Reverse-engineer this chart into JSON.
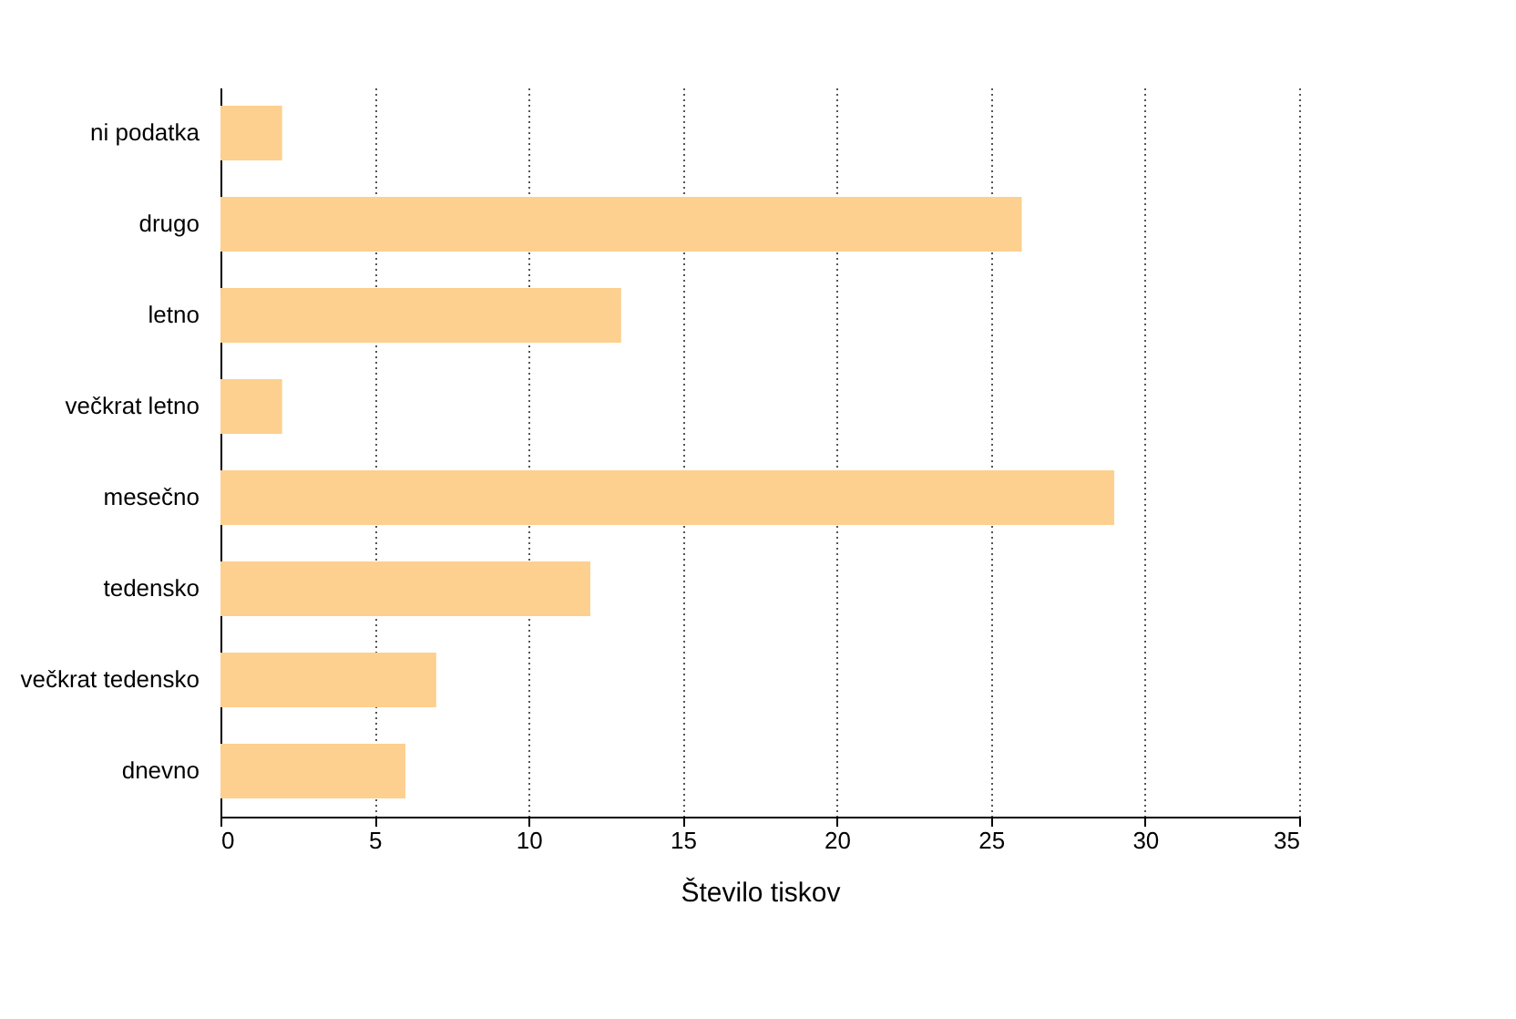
{
  "chart_data": {
    "type": "bar",
    "orientation": "horizontal",
    "xlabel": "Število tiskov",
    "categories": [
      "ni podatka",
      "drugo",
      "letno",
      "večkrat letno",
      "mesečno",
      "tedensko",
      "večkrat tedensko",
      "dnevno"
    ],
    "values": [
      2,
      26,
      13,
      2,
      29,
      12,
      7,
      6
    ],
    "color": "#fdd08f",
    "xlim": [
      0,
      35
    ],
    "xticks": [
      0,
      5,
      10,
      15,
      20,
      25,
      30,
      35
    ],
    "grid": "x"
  }
}
